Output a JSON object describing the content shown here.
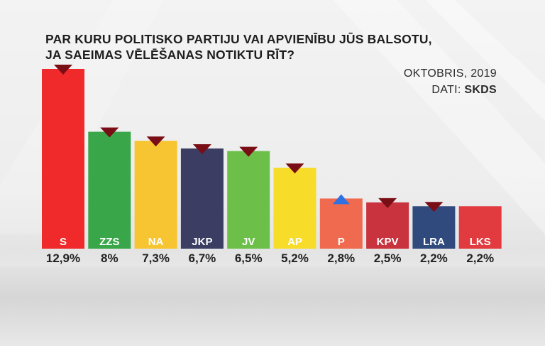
{
  "title_lines": [
    "PAR KURU POLITISKO PARTIJU VAI APVIENĪBU JŪS BALSOTU,",
    "JA SAEIMAS VĒLĒŠANAS NOTIKTU RĪT?"
  ],
  "date": "OKTOBRIS, 2019",
  "source_prefix": "DATI:",
  "source_name": "SKDS",
  "chart_data": {
    "type": "bar",
    "categories": [
      "S",
      "ZZS",
      "NA",
      "JKP",
      "JV",
      "AP",
      "P",
      "KPV",
      "LRA",
      "LKS"
    ],
    "values": [
      12.9,
      8,
      7.3,
      6.7,
      6.5,
      5.2,
      2.8,
      2.5,
      2.2,
      2.2
    ],
    "value_labels": [
      "12,9%",
      "8%",
      "7,3%",
      "6,7%",
      "6,5%",
      "5,2%",
      "2,8%",
      "2,5%",
      "2,2%",
      "2,2%"
    ],
    "colors": [
      "#f02a2a",
      "#3aa64a",
      "#f7c531",
      "#3b3d63",
      "#6cc04a",
      "#f7dc2a",
      "#ef6a4e",
      "#c9333e",
      "#314a7d",
      "#e13b40"
    ],
    "trend": [
      "down",
      "down",
      "down",
      "down",
      "down",
      "down",
      "up",
      "down",
      "down",
      "none"
    ],
    "trend_colors": {
      "down": "#7a0e16",
      "up": "#2f72e0"
    },
    "title": "PAR KURU POLITISKO PARTIJU VAI APVIENĪBU JŪS BALSOTU, JA SAEIMAS VĒLĒŠANAS NOTIKTU RĪT?",
    "xlabel": "",
    "ylabel": "",
    "ylim": [
      0,
      12.9
    ],
    "grid": false
  }
}
